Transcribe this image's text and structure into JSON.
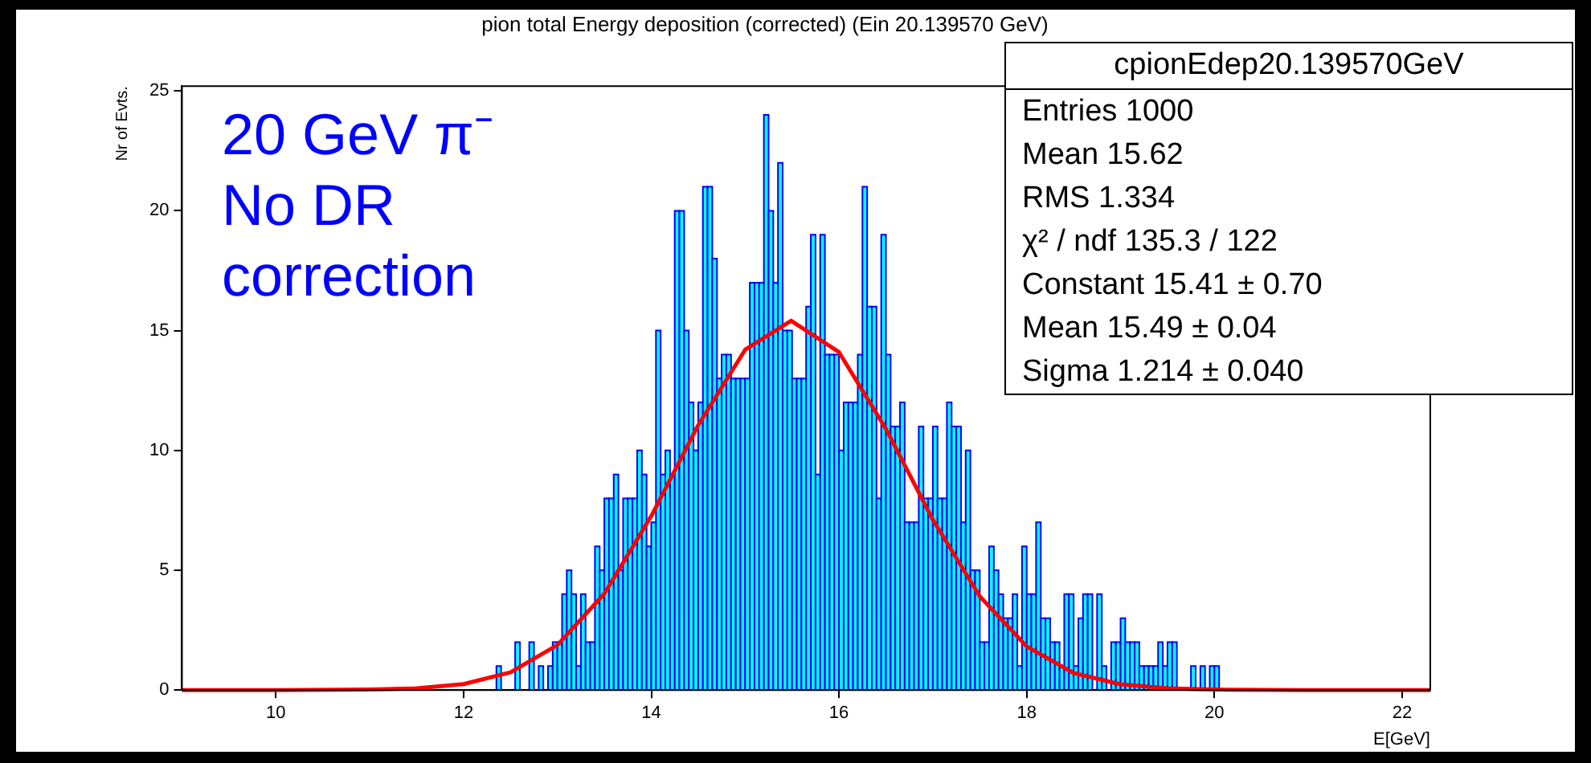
{
  "chart_data": {
    "type": "histogram",
    "title": "pion total Energy deposition (corrected) (Ein 20.139570 GeV)",
    "xlabel": "E[GeV]",
    "ylabel": "Nr of Evts.",
    "xlim": [
      9,
      22.3
    ],
    "xticks": [
      10,
      12,
      14,
      16,
      18,
      20,
      22
    ],
    "ylim": [
      0,
      25.2
    ],
    "yticks": [
      0,
      5,
      10,
      15,
      20,
      25
    ],
    "grid": false,
    "legend": false,
    "annotations": [
      "20 GeV π⁻\nNo DR\ncorrection",
      "cpionEdep20.139570GeV",
      "Entries 1000",
      "Mean 15.62",
      "RMS 1.334",
      "χ² / ndf 135.3 / 122",
      "Constant 15.41 ± 0.70",
      "Mean 15.49 ± 0.04",
      "Sigma 1.214 ± 0.040"
    ],
    "series": [
      {
        "color": "#00ffff",
        "bins": [
          12.25,
          12.3,
          12.35,
          12.4,
          12.45,
          12.5,
          12.55,
          12.6,
          12.65,
          12.7,
          12.75,
          12.8,
          12.85,
          12.9,
          12.95,
          13,
          13.05,
          13.1,
          13.15,
          13.2,
          13.25,
          13.3,
          13.35,
          13.4,
          13.45,
          13.5,
          13.55,
          13.6,
          13.65,
          13.7,
          13.75,
          13.8,
          13.85,
          13.9,
          13.95,
          14,
          14.05,
          14.1,
          14.15,
          14.2,
          14.25,
          14.3,
          14.35,
          14.4,
          14.45,
          14.5,
          14.55,
          14.6,
          14.65,
          14.7,
          14.75,
          14.8,
          14.85,
          14.9,
          14.95,
          15,
          15.05,
          15.1,
          15.15,
          15.2,
          15.25,
          15.3,
          15.35,
          15.4,
          15.45,
          15.5,
          15.55,
          15.6,
          15.65,
          15.7,
          15.75,
          15.8,
          15.85,
          15.9,
          15.95,
          16,
          16.05,
          16.1,
          16.15,
          16.2,
          16.25,
          16.3,
          16.35,
          16.4,
          16.45,
          16.5,
          16.55,
          16.6,
          16.65,
          16.7,
          16.75,
          16.8,
          16.85,
          16.9,
          16.95,
          17,
          17.05,
          17.1,
          17.15,
          17.2,
          17.25,
          17.3,
          17.35,
          17.4,
          17.45,
          17.5,
          17.55,
          17.6,
          17.65,
          17.7,
          17.75,
          17.8,
          17.85,
          17.9,
          17.95,
          18,
          18.05,
          18.1,
          18.15,
          18.2,
          18.25,
          18.3,
          18.35,
          18.4,
          18.45,
          18.5,
          18.55,
          18.6,
          18.65,
          18.7,
          18.75,
          18.8,
          18.85,
          18.9,
          18.95,
          19,
          19.05,
          19.1,
          19.15,
          19.2,
          19.25,
          19.3,
          19.35,
          19.4,
          19.45,
          19.5,
          19.55,
          19.6,
          19.65,
          19.7,
          19.75,
          19.8,
          19.85,
          19.9,
          19.95,
          20,
          20.05
        ],
        "values": [
          0,
          0,
          1,
          0,
          0,
          0,
          2,
          0,
          0,
          2,
          0,
          1,
          0,
          1,
          2,
          2,
          4,
          5,
          4,
          1,
          4,
          2,
          2,
          6,
          5,
          8,
          8,
          9,
          5,
          8,
          8,
          8,
          10,
          9,
          6,
          7,
          15,
          9,
          10,
          9,
          20,
          20,
          15,
          12,
          10,
          12,
          21,
          21,
          18,
          13,
          14,
          14,
          13,
          13,
          13,
          13,
          17,
          17,
          17,
          24,
          20,
          17,
          22,
          15,
          15,
          13,
          13,
          13,
          16,
          19,
          9,
          19,
          14,
          14,
          14,
          10,
          12,
          12,
          12,
          14,
          21,
          16,
          16,
          8,
          19,
          14,
          11,
          11,
          12,
          7,
          7,
          7,
          11,
          8,
          8,
          11,
          8,
          8,
          12,
          11,
          11,
          7,
          10,
          5,
          5,
          2,
          2,
          6,
          5,
          4,
          3,
          3,
          4,
          1,
          6,
          4,
          4,
          7,
          3,
          3,
          2,
          2,
          1,
          4,
          4,
          1,
          3,
          4,
          4,
          0,
          4,
          1,
          0,
          2,
          2,
          3,
          2,
          2,
          2,
          1,
          1,
          1,
          1,
          2,
          1,
          2,
          2,
          0,
          0,
          0,
          1,
          0,
          1,
          0,
          1,
          1
        ]
      },
      {
        "type": "line",
        "color": "#ff0000",
        "marker": "none",
        "x": [
          9,
          10,
          11,
          11.5,
          12,
          12.5,
          13,
          13.5,
          14,
          14.5,
          15,
          15.49,
          16,
          16.5,
          17,
          17.5,
          18,
          18.5,
          19,
          19.5,
          20,
          21,
          22.3
        ],
        "values": [
          0,
          0,
          0.02,
          0.07,
          0.25,
          0.74,
          1.88,
          4.02,
          7.26,
          11.05,
          14.2,
          15.41,
          14.1,
          10.9,
          7.11,
          3.91,
          1.82,
          0.71,
          0.24,
          0.07,
          0.02,
          0,
          0
        ]
      }
    ]
  }
}
